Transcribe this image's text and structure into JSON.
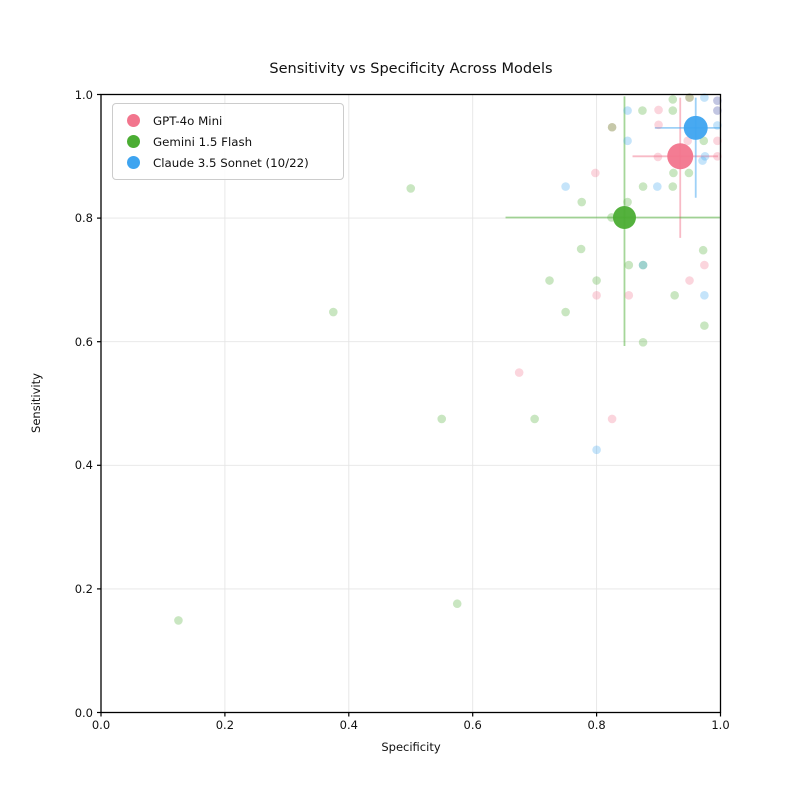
{
  "title": "Sensitivity vs Specificity Across Models",
  "chart_data": {
    "type": "scatter",
    "title": "Sensitivity vs Specificity Across Models",
    "xlabel": "Specificity",
    "ylabel": "Sensitivity",
    "xlim": [
      0.0,
      1.0
    ],
    "ylim": [
      0.0,
      1.0
    ],
    "x_ticks": [
      "0.0",
      "0.2",
      "0.4",
      "0.6",
      "0.8",
      "1.0"
    ],
    "y_ticks": [
      "0.0",
      "0.2",
      "0.4",
      "0.6",
      "0.8",
      "1.0"
    ],
    "grid": true,
    "legend_position": "upper-left",
    "series": [
      {
        "name": "GPT-4o Mini",
        "color": "#f2758d",
        "mean": {
          "x": 0.935,
          "y": 0.9,
          "x_lo": 0.858,
          "x_hi": 0.996,
          "y_lo": 0.768,
          "y_hi": 0.995,
          "marker_radius": 13
        },
        "points": [
          [
            0.9,
            0.975
          ],
          [
            0.995,
            0.99
          ],
          [
            0.995,
            0.974
          ],
          [
            0.95,
            0.995
          ],
          [
            0.9,
            0.951
          ],
          [
            0.825,
            0.947
          ],
          [
            0.947,
            0.925
          ],
          [
            0.995,
            0.925
          ],
          [
            0.899,
            0.899
          ],
          [
            0.995,
            0.9
          ],
          [
            0.798,
            0.873
          ],
          [
            0.974,
            0.724
          ],
          [
            0.95,
            0.699
          ],
          [
            0.852,
            0.675
          ],
          [
            0.8,
            0.675
          ],
          [
            0.675,
            0.55
          ],
          [
            0.825,
            0.475
          ]
        ]
      },
      {
        "name": "Gemini 1.5 Flash",
        "color": "#4bad33",
        "mean": {
          "x": 0.845,
          "y": 0.801,
          "x_lo": 0.653,
          "x_hi": 0.999,
          "y_lo": 0.593,
          "y_hi": 0.997,
          "marker_radius": 11.5
        },
        "points": [
          [
            0.923,
            0.992
          ],
          [
            0.95,
            0.995
          ],
          [
            0.874,
            0.974
          ],
          [
            0.923,
            0.974
          ],
          [
            0.825,
            0.947
          ],
          [
            0.973,
            0.925
          ],
          [
            0.949,
            0.873
          ],
          [
            0.924,
            0.873
          ],
          [
            0.875,
            0.851
          ],
          [
            0.923,
            0.851
          ],
          [
            0.85,
            0.826
          ],
          [
            0.776,
            0.826
          ],
          [
            0.824,
            0.801
          ],
          [
            0.775,
            0.75
          ],
          [
            0.972,
            0.748
          ],
          [
            0.852,
            0.724
          ],
          [
            0.875,
            0.724
          ],
          [
            0.724,
            0.699
          ],
          [
            0.8,
            0.699
          ],
          [
            0.926,
            0.675
          ],
          [
            0.75,
            0.648
          ],
          [
            0.974,
            0.626
          ],
          [
            0.875,
            0.599
          ],
          [
            0.5,
            0.848
          ],
          [
            0.375,
            0.648
          ],
          [
            0.55,
            0.475
          ],
          [
            0.7,
            0.475
          ],
          [
            0.575,
            0.176
          ],
          [
            0.125,
            0.149
          ]
        ]
      },
      {
        "name": "Claude 3.5 Sonnet (10/22)",
        "color": "#3ea4f0",
        "mean": {
          "x": 0.96,
          "y": 0.946,
          "x_lo": 0.894,
          "x_hi": 0.999,
          "y_lo": 0.833,
          "y_hi": 0.995,
          "marker_radius": 12
        },
        "points": [
          [
            0.974,
            0.995
          ],
          [
            0.995,
            0.99
          ],
          [
            0.995,
            0.974
          ],
          [
            0.85,
            0.974
          ],
          [
            0.995,
            0.95
          ],
          [
            0.85,
            0.925
          ],
          [
            0.975,
            0.9
          ],
          [
            0.971,
            0.893
          ],
          [
            0.75,
            0.851
          ],
          [
            0.898,
            0.851
          ],
          [
            0.875,
            0.724
          ],
          [
            0.974,
            0.675
          ],
          [
            0.8,
            0.425
          ]
        ]
      }
    ],
    "style": {
      "point_radius": 4.3,
      "point_opacity": 0.3,
      "mean_opacity": 0.95,
      "errorbar_opacity": 0.5,
      "errorbar_width": 1.8,
      "grid_color": "#e5e5e5",
      "spine_color": "#000000",
      "background": "#ffffff"
    }
  }
}
